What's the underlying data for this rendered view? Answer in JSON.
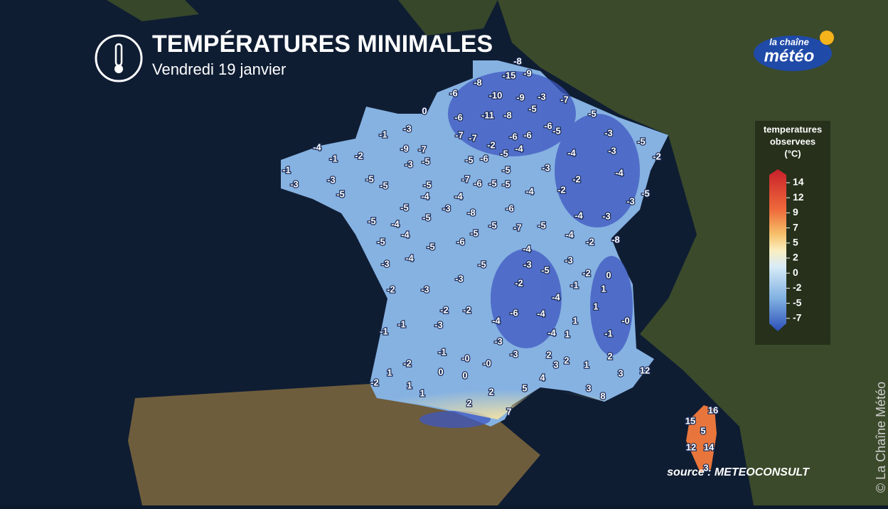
{
  "header": {
    "title": "TEMPÉRATURES MINIMALES",
    "subtitle": "Vendredi 19 janvier"
  },
  "logo": {
    "top": "la chaîne",
    "bottom": "météo"
  },
  "legend": {
    "title": [
      "temperatures",
      "observees",
      "(°C)"
    ],
    "ticks": [
      14,
      12,
      9,
      7,
      5,
      2,
      0,
      -2,
      -5,
      -7
    ]
  },
  "temperatures": [
    -8,
    -15,
    -9,
    -8,
    -6,
    -10,
    -9,
    -3,
    -7,
    -5,
    0,
    -6,
    -11,
    -8,
    -5,
    -6,
    -5,
    -3,
    -7,
    -7,
    -6,
    -6,
    -3,
    -1,
    -2,
    -4,
    -5,
    -5,
    -3,
    -4,
    -4,
    -9,
    -7,
    -2,
    -1,
    -2,
    -5,
    -6,
    -3,
    -5,
    -3,
    -5,
    -1,
    -4,
    -3,
    -5,
    -5,
    -5,
    -7,
    -6,
    -5,
    -5,
    -4,
    -2,
    -2,
    -3,
    -5,
    -5,
    -4,
    -4,
    -3,
    -5,
    -3,
    -6,
    -8,
    -5,
    -4,
    -3,
    -5,
    -4,
    -5,
    -7,
    -5,
    -5,
    -4,
    -4,
    -2,
    -8,
    -5,
    -6,
    -5,
    -4,
    -4,
    -3,
    -5,
    -3,
    -5,
    -3,
    -2,
    0,
    -3,
    -2,
    -1,
    1,
    -2,
    -3,
    -4,
    1,
    -2,
    -2,
    -6,
    -4,
    -4,
    1,
    {
      "value": 0,
      "label": "-0"
    },
    -1,
    -3,
    -1,
    -1,
    -4,
    1,
    -3,
    -1,
    -3,
    2,
    2,
    {
      "value": 0,
      "label": "-0"
    },
    2,
    3,
    {
      "value": 0,
      "label": "-0"
    },
    -2,
    1,
    12,
    1,
    0,
    0,
    3,
    4,
    -2,
    1,
    5,
    3,
    1,
    2,
    8,
    2,
    7,
    16,
    15,
    5,
    12,
    14,
    3
  ],
  "source": "source : METEOCONSULT",
  "copyright": "© La Chaîne Météo"
}
